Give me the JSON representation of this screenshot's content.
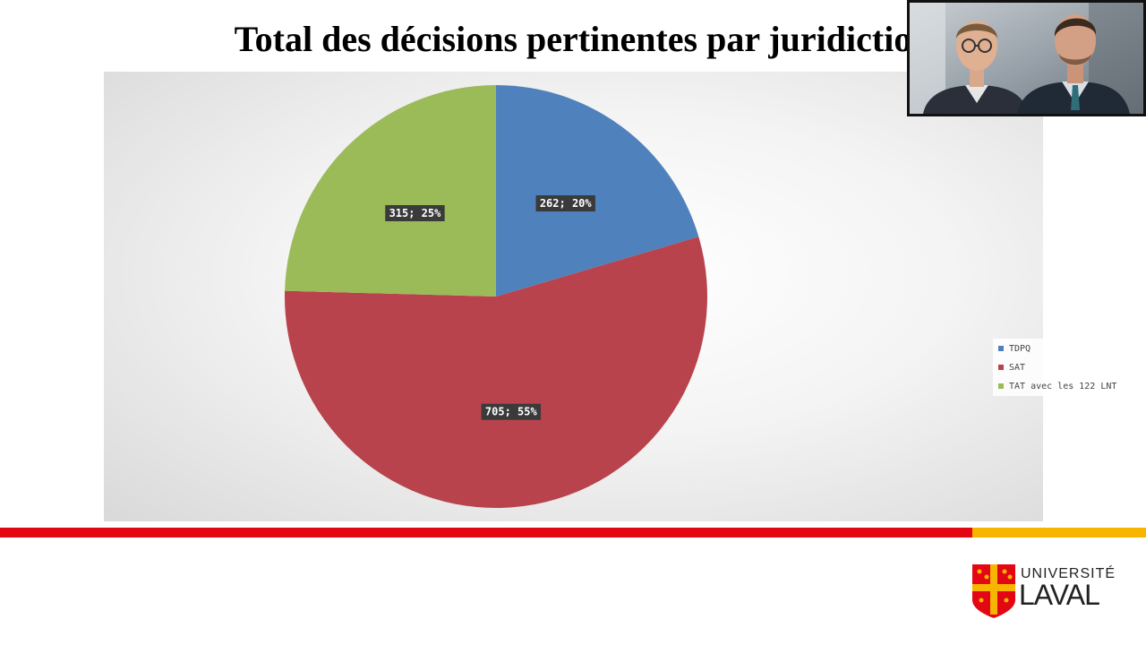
{
  "slide": {
    "title": "Total des décisions pertinentes par juridictio"
  },
  "chart_data": {
    "type": "pie",
    "title": "Total des décisions pertinentes par juridictio",
    "slices": [
      {
        "name": "TDPQ",
        "value": 262,
        "percent": 20,
        "label": "262; 20%",
        "color": "#4f81bd"
      },
      {
        "name": "SAT",
        "value": 705,
        "percent": 55,
        "label": "705; 55%",
        "color": "#b8434c"
      },
      {
        "name": "TAT avec les 122 LNT",
        "value": 315,
        "percent": 25,
        "label": "315; 25%",
        "color": "#9bbb59"
      }
    ],
    "legend_position": "right",
    "start_angle": "12 o'clock",
    "direction": "clockwise"
  },
  "legend": {
    "items": [
      {
        "label": "TDPQ",
        "color": "#4f81bd"
      },
      {
        "label": "SAT",
        "color": "#b8434c"
      },
      {
        "label": "TAT avec les 122 LNT",
        "color": "#9bbb59"
      }
    ]
  },
  "branding": {
    "logo_line1": "UNIVERSITÉ",
    "logo_line2": "LAVAL",
    "bar_colors": {
      "red": "#e30613",
      "yellow": "#f7b500"
    }
  },
  "webcam": {
    "icon": "presenters-video-icon"
  }
}
